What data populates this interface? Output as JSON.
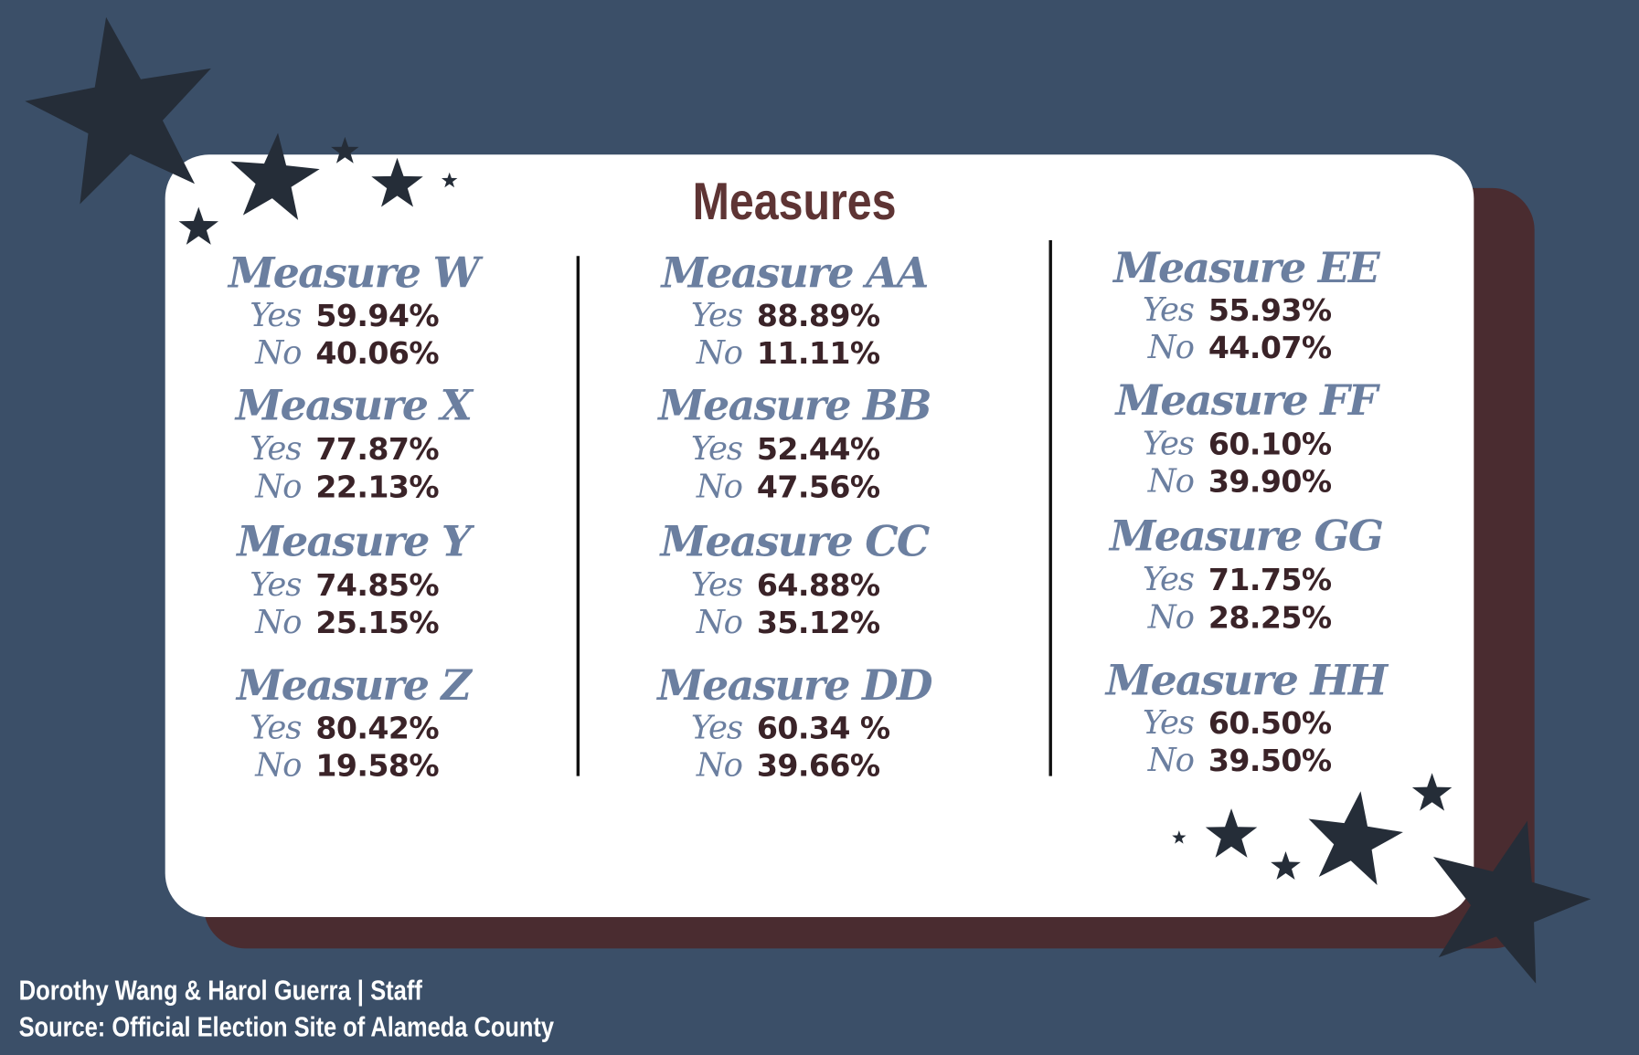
{
  "title": "Measures",
  "columns": [
    [
      {
        "name": "Measure W",
        "yes_label": "Yes",
        "yes": "59.94%",
        "no_label": "No",
        "no": "40.06%"
      },
      {
        "name": "Measure X",
        "yes_label": "Yes",
        "yes": "77.87%",
        "no_label": "No",
        "no": "22.13%"
      },
      {
        "name": "Measure Y",
        "yes_label": "Yes",
        "yes": "74.85%",
        "no_label": "No",
        "no": "25.15%"
      },
      {
        "name": "Measure Z",
        "yes_label": "Yes",
        "yes": "80.42%",
        "no_label": "No",
        "no": "19.58%"
      }
    ],
    [
      {
        "name": "Measure AA",
        "yes_label": "Yes",
        "yes": "88.89%",
        "no_label": "No",
        "no": "11.11%"
      },
      {
        "name": "Measure BB",
        "yes_label": "Yes",
        "yes": "52.44%",
        "no_label": "No",
        "no": "47.56%"
      },
      {
        "name": "Measure CC",
        "yes_label": "Yes",
        "yes": "64.88%",
        "no_label": "No",
        "no": "35.12%"
      },
      {
        "name": "Measure DD",
        "yes_label": "Yes",
        "yes": "60.34 %",
        "no_label": "No",
        "no": "39.66%"
      }
    ],
    [
      {
        "name": "Measure EE",
        "yes_label": "Yes",
        "yes": "55.93%",
        "no_label": "No",
        "no": "44.07%"
      },
      {
        "name": "Measure FF",
        "yes_label": "Yes",
        "yes": "60.10%",
        "no_label": "No",
        "no": "39.90%"
      },
      {
        "name": "Measure GG",
        "yes_label": "Yes",
        "yes": "71.75%",
        "no_label": "No",
        "no": "28.25%"
      },
      {
        "name": "Measure HH",
        "yes_label": "Yes",
        "yes": "60.50%",
        "no_label": "No",
        "no": "39.50%"
      }
    ]
  ],
  "footer": {
    "credit": "Dorothy Wang & Harol Guerra | Staff",
    "source": "Source: Official Election Site of Alameda County"
  }
}
